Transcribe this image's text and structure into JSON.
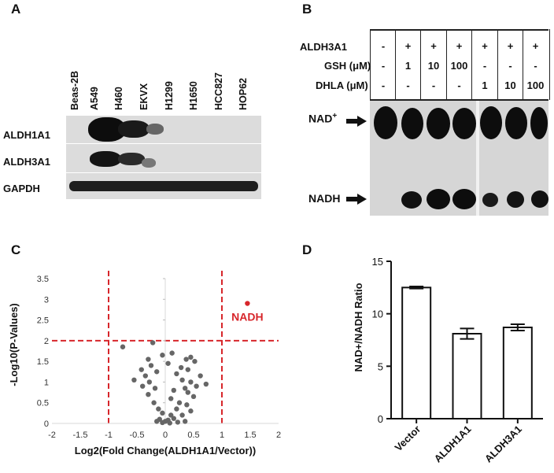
{
  "panels": {
    "a": "A",
    "b": "B",
    "c": "C",
    "d": "D"
  },
  "panel_a": {
    "lanes": [
      "Beas-2B",
      "A549",
      "H460",
      "EKVX",
      "H1299",
      "H1650",
      "HCC827",
      "HOP62"
    ],
    "rows": [
      "ALDH1A1",
      "ALDH3A1",
      "GAPDH"
    ]
  },
  "panel_b": {
    "rows": [
      {
        "label": "ALDH3A1",
        "cells": [
          "-",
          "+",
          "+",
          "+",
          "+",
          "+",
          "+"
        ]
      },
      {
        "label": "GSH (μM)",
        "cells": [
          "-",
          "1",
          "10",
          "100",
          "-",
          "-",
          "-"
        ]
      },
      {
        "label": "DHLA (μM)",
        "cells": [
          "-",
          "-",
          "-",
          "-",
          "1",
          "10",
          "100"
        ]
      }
    ],
    "nad_label": "NAD",
    "nad_sup": "+",
    "nadh_label": "NADH"
  },
  "chart_data": [
    {
      "type": "scatter",
      "panel": "C",
      "xlabel": "Log2(Fold Change(ALDH1A1/Vector))",
      "ylabel": "-Log10(P-Values)",
      "xlim": [
        -2,
        2
      ],
      "ylim": [
        0,
        3.5
      ],
      "xticks": [
        "-2",
        "-1.5",
        "-1",
        "-0.5",
        "0",
        "0.5",
        "1",
        "1.5",
        "2"
      ],
      "yticks": [
        "0",
        "0.5",
        "1",
        "1.5",
        "2",
        "2.5",
        "3",
        "3.5"
      ],
      "thresholds": {
        "x": [
          -1,
          1
        ],
        "y": 2
      },
      "highlight": {
        "label": "NADH",
        "x": 1.45,
        "y": 2.9,
        "color": "#d7262b"
      },
      "point_color": "#666666",
      "points": [
        [
          -0.75,
          1.85
        ],
        [
          -0.22,
          1.95
        ],
        [
          -0.3,
          1.55
        ],
        [
          -0.05,
          1.65
        ],
        [
          0.12,
          1.7
        ],
        [
          0.45,
          1.6
        ],
        [
          0.37,
          1.55
        ],
        [
          0.52,
          1.5
        ],
        [
          -0.25,
          1.4
        ],
        [
          0.05,
          1.45
        ],
        [
          -0.42,
          1.3
        ],
        [
          0.28,
          1.35
        ],
        [
          0.4,
          1.3
        ],
        [
          -0.15,
          1.25
        ],
        [
          0.2,
          1.2
        ],
        [
          -0.35,
          1.15
        ],
        [
          0.62,
          1.15
        ],
        [
          -0.55,
          1.05
        ],
        [
          -0.28,
          1.0
        ],
        [
          0.3,
          1.05
        ],
        [
          0.45,
          1.0
        ],
        [
          -0.4,
          0.9
        ],
        [
          0.55,
          0.9
        ],
        [
          0.72,
          0.95
        ],
        [
          -0.18,
          0.85
        ],
        [
          0.15,
          0.8
        ],
        [
          0.35,
          0.85
        ],
        [
          -0.3,
          0.7
        ],
        [
          0.1,
          0.6
        ],
        [
          0.4,
          0.75
        ],
        [
          0.5,
          0.65
        ],
        [
          -0.2,
          0.5
        ],
        [
          0.25,
          0.5
        ],
        [
          0.38,
          0.45
        ],
        [
          -0.12,
          0.35
        ],
        [
          0.2,
          0.35
        ],
        [
          0.45,
          0.3
        ],
        [
          -0.05,
          0.25
        ],
        [
          0.1,
          0.2
        ],
        [
          0.3,
          0.2
        ],
        [
          -0.1,
          0.1
        ],
        [
          0.05,
          0.08
        ],
        [
          0.15,
          0.12
        ],
        [
          0.35,
          0.05
        ],
        [
          -0.05,
          0.02
        ],
        [
          0.0,
          0.05
        ],
        [
          0.08,
          0.01
        ],
        [
          -0.15,
          0.05
        ],
        [
          0.22,
          0.03
        ]
      ]
    },
    {
      "type": "bar",
      "panel": "D",
      "categories": [
        "Vector",
        "ALDH1A1",
        "ALDH3A1"
      ],
      "values": [
        12.5,
        8.1,
        8.7
      ],
      "errors": [
        0.1,
        0.5,
        0.3
      ],
      "ylabel": "NAD+/NADH Ratio",
      "ylim": [
        0,
        15
      ],
      "yticks": [
        "0",
        "5",
        "10",
        "15"
      ]
    }
  ]
}
